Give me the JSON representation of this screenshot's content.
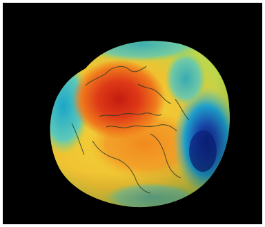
{
  "image": {
    "subject": "geoid-globe-icon",
    "colors": {
      "background": "#000000",
      "frame": "#ffffff",
      "high": "#d42a14",
      "mid_high": "#f08a1c",
      "mid": "#f2d43a",
      "mid_low": "#8fd36a",
      "low": "#1ea7c8",
      "lowest": "#0d2a8a",
      "coastline": "#2b3a2a"
    }
  }
}
